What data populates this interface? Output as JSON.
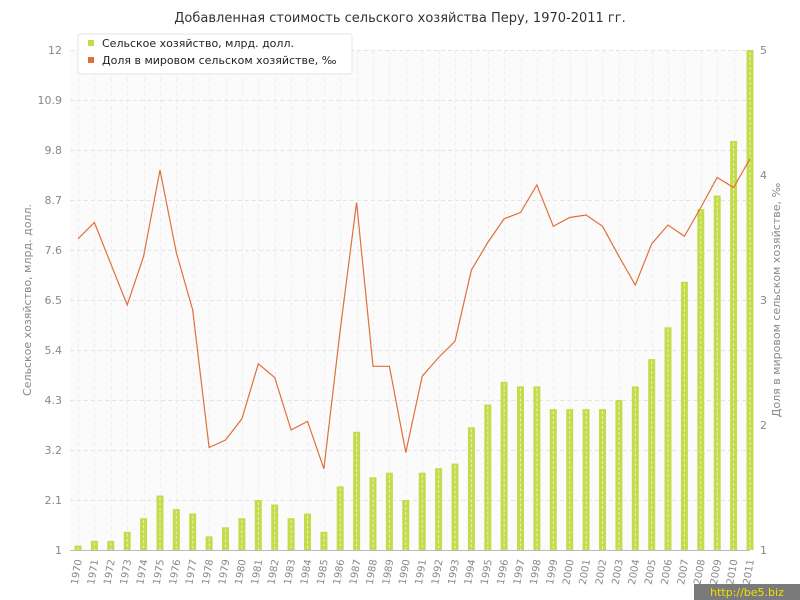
{
  "chart_data": {
    "type": "bar",
    "title": "Добавленная стоимость сельского хозяйства Перу, 1970-2011 гг.",
    "ylabel": "Сельское хозяйство, млрд. долл.",
    "y2label": "Доля в мировом сельском хозяйстве, ‰",
    "ylim": [
      1,
      12
    ],
    "y2lim": [
      1,
      5
    ],
    "yticks": [
      "1",
      "2.1",
      "3.2",
      "4.3",
      "5.4",
      "6.5",
      "7.6",
      "8.7",
      "9.8",
      "10.9",
      "12"
    ],
    "y2ticks": [
      "1",
      "2",
      "3",
      "4",
      "5"
    ],
    "grid": true,
    "legend_position": "top-left",
    "categories": [
      "1970",
      "1971",
      "1972",
      "1973",
      "1974",
      "1975",
      "1976",
      "1977",
      "1978",
      "1979",
      "1980",
      "1981",
      "1982",
      "1983",
      "1984",
      "1985",
      "1986",
      "1987",
      "1988",
      "1989",
      "1990",
      "1991",
      "1992",
      "1993",
      "1994",
      "1995",
      "1996",
      "1997",
      "1998",
      "1999",
      "2000",
      "2001",
      "2002",
      "2003",
      "2004",
      "2005",
      "2006",
      "2007",
      "2008",
      "2009",
      "2010",
      "2011"
    ],
    "series": [
      {
        "name": "Сельское хозяйство, млрд. долл.",
        "type": "bar",
        "axis": "left",
        "color": "#c3dc4d",
        "values": [
          1.1,
          1.2,
          1.2,
          1.4,
          1.7,
          2.2,
          1.9,
          1.8,
          1.3,
          1.5,
          1.7,
          2.1,
          2.0,
          1.7,
          1.8,
          1.4,
          2.4,
          3.6,
          2.6,
          2.7,
          2.1,
          2.7,
          2.8,
          2.9,
          3.7,
          4.2,
          4.7,
          4.6,
          4.6,
          4.1,
          4.1,
          4.1,
          4.1,
          4.3,
          4.6,
          5.2,
          5.9,
          6.9,
          8.5,
          8.8,
          10.0,
          12.0
        ]
      },
      {
        "name": "Доля в мировом сельском хозяйстве, ‰",
        "type": "line",
        "axis": "right",
        "color": "#e0703a",
        "values": [
          3.49,
          3.62,
          3.29,
          2.96,
          3.35,
          4.04,
          3.38,
          2.92,
          1.82,
          1.88,
          2.05,
          2.49,
          2.38,
          1.96,
          2.03,
          1.65,
          2.76,
          3.78,
          2.47,
          2.47,
          1.78,
          2.39,
          2.54,
          2.67,
          3.24,
          3.46,
          3.65,
          3.7,
          3.92,
          3.59,
          3.66,
          3.68,
          3.59,
          3.35,
          3.12,
          3.45,
          3.6,
          3.51,
          3.74,
          3.98,
          3.9,
          4.13
        ]
      }
    ]
  },
  "watermark": "http://be5.biz"
}
